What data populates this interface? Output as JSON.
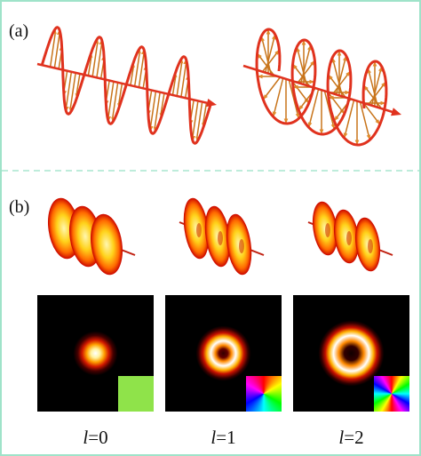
{
  "panels": [
    {
      "label": "(a)"
    },
    {
      "label": "(b)",
      "modes": [
        {
          "symbol": "l",
          "suffix": "=0"
        },
        {
          "symbol": "l",
          "suffix": "=1"
        },
        {
          "symbol": "l",
          "suffix": "=2"
        }
      ]
    }
  ]
}
